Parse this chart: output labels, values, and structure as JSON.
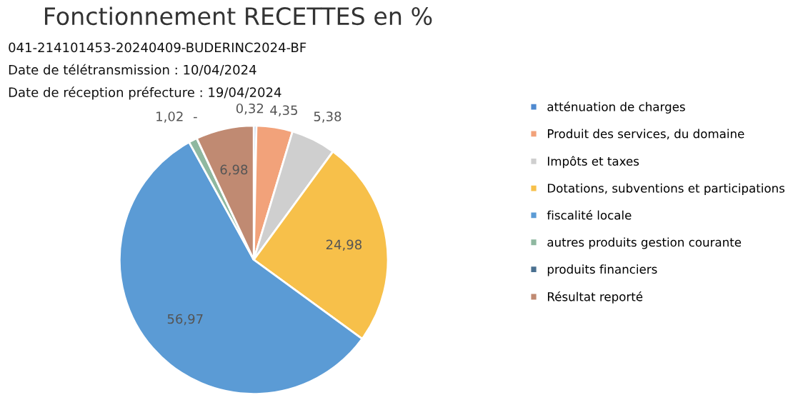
{
  "chart_data": {
    "type": "pie",
    "title": "Fonctionnement RECETTES en %",
    "categories": [
      "atténuation de charges",
      "Produit des services, du domaine",
      "Impôts et taxes",
      "Dotations, subventions et participations",
      "fiscalité locale",
      "autres produits gestion courante",
      "produits financiers",
      "Résultat reporté"
    ],
    "values": [
      0.32,
      4.35,
      5.38,
      24.98,
      56.97,
      1.02,
      0,
      6.98
    ],
    "value_labels": [
      "0,32",
      "4,35",
      "5,38",
      "24,98",
      "56,97",
      "1,02",
      "-",
      "6,98"
    ],
    "colors": [
      "#4f8ad0",
      "#f2a27a",
      "#cfcfcf",
      "#f7c04a",
      "#5b9bd5",
      "#8fb8a0",
      "#4a7090",
      "#c08a72"
    ],
    "legend": "right",
    "annotations": [
      "041-214101453-20240409-BUDERINC2024-BF",
      "Date de télétransmission : 10/04/2024",
      "Date de réception préfecture : 19/04/2024"
    ]
  }
}
